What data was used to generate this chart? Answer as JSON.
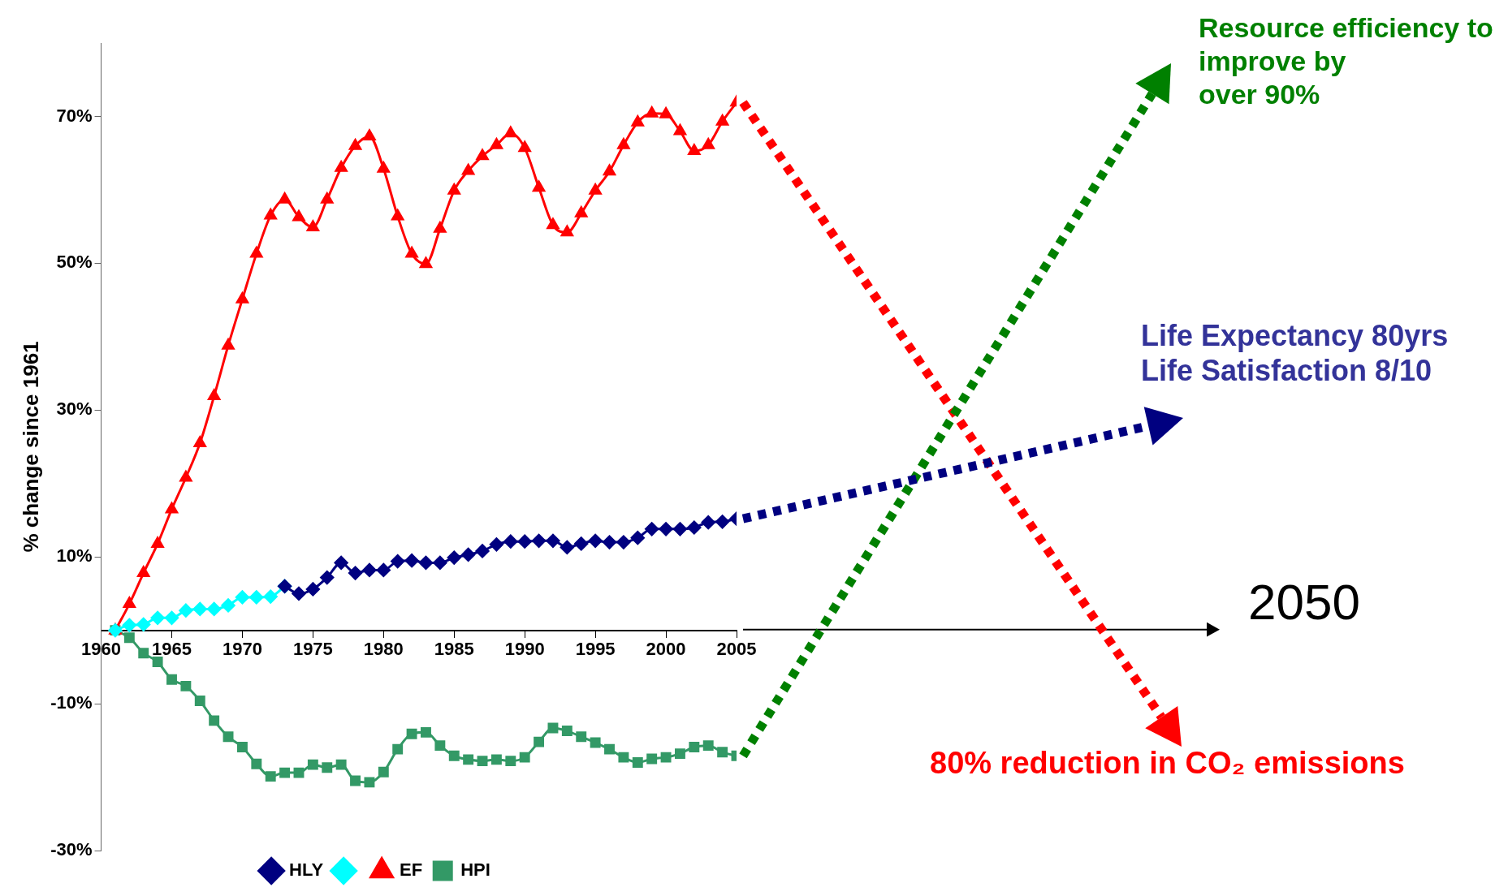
{
  "chart_data": {
    "type": "line",
    "ylabel": "% change since 1961",
    "x": [
      1961,
      1962,
      1963,
      1964,
      1965,
      1966,
      1967,
      1968,
      1969,
      1970,
      1971,
      1972,
      1973,
      1974,
      1975,
      1976,
      1977,
      1978,
      1979,
      1980,
      1981,
      1982,
      1983,
      1984,
      1985,
      1986,
      1987,
      1988,
      1989,
      1990,
      1991,
      1992,
      1993,
      1994,
      1995,
      1996,
      1997,
      1998,
      1999,
      2000,
      2001,
      2002,
      2003,
      2004,
      2005
    ],
    "series": [
      {
        "name": "HLY",
        "color": "#000080",
        "marker": "diamond",
        "x": [
          1973,
          1974,
          1975,
          1976,
          1977,
          1978,
          1979,
          1980,
          1981,
          1982,
          1983,
          1984,
          1985,
          1986,
          1987,
          1988,
          1989,
          1990,
          1991,
          1992,
          1993,
          1994,
          1995,
          1996,
          1997,
          1998,
          1999,
          2000,
          2001,
          2002,
          2003,
          2004,
          2005
        ],
        "values": [
          6.0,
          5.0,
          5.6,
          7.2,
          9.2,
          7.8,
          8.2,
          8.2,
          9.4,
          9.5,
          9.2,
          9.2,
          9.9,
          10.3,
          10.8,
          11.7,
          12.1,
          12.1,
          12.2,
          12.2,
          11.3,
          11.8,
          12.2,
          12.0,
          12.0,
          12.6,
          13.8,
          13.8,
          13.8,
          14.0,
          14.7,
          14.8,
          15.2
        ]
      },
      {
        "color": "#00ffff",
        "marker": "diamond",
        "x": [
          1961,
          1962,
          1963,
          1964,
          1965,
          1966,
          1967,
          1968,
          1969,
          1970,
          1971,
          1972,
          1973
        ],
        "values": [
          0,
          0.7,
          0.8,
          1.7,
          1.7,
          2.7,
          2.9,
          2.9,
          3.4,
          4.5,
          4.5,
          4.6,
          6.0
        ]
      },
      {
        "name": "EF",
        "color": "#ff0000",
        "marker": "triangle",
        "values": [
          0,
          3.6,
          7.8,
          11.8,
          16.5,
          20.8,
          25.5,
          31.9,
          38.8,
          45.1,
          51.3,
          56.5,
          58.7,
          56.3,
          54.9,
          58.7,
          63.0,
          66.0,
          67.3,
          62.9,
          56.4,
          51.3,
          49.9,
          54.7,
          59.9,
          62.6,
          64.6,
          66.1,
          67.7,
          65.7,
          60.3,
          55.2,
          54.2,
          56.8,
          59.9,
          62.5,
          66.1,
          69.2,
          70.4,
          70.3,
          68.0,
          65.3,
          66.1,
          69.3,
          71.9
        ]
      },
      {
        "name": "HPI",
        "color": "#339966",
        "marker": "square",
        "values": [
          0,
          -1.0,
          -3.1,
          -4.3,
          -6.7,
          -7.6,
          -9.6,
          -12.3,
          -14.5,
          -15.9,
          -18.2,
          -19.9,
          -19.4,
          -19.4,
          -18.3,
          -18.7,
          -18.3,
          -20.5,
          -20.7,
          -19.3,
          -16.2,
          -14.1,
          -13.9,
          -15.7,
          -17.1,
          -17.6,
          -17.8,
          -17.6,
          -17.8,
          -17.3,
          -15.2,
          -13.3,
          -13.7,
          -14.5,
          -15.3,
          -16.2,
          -17.3,
          -18.0,
          -17.5,
          -17.3,
          -16.8,
          -15.9,
          -15.7,
          -16.6,
          -17.1
        ]
      }
    ],
    "xlim": [
      1960,
      2005
    ],
    "xticks": [
      1960,
      1965,
      1970,
      1975,
      1980,
      1985,
      1990,
      1995,
      2000,
      2005
    ],
    "ylim": [
      -30,
      80
    ],
    "yticks": [
      {
        "value": -30,
        "label": "-30%"
      },
      {
        "value": -10,
        "label": "-10%"
      },
      {
        "value": 10,
        "label": "10%"
      },
      {
        "value": 30,
        "label": "30%"
      },
      {
        "value": 50,
        "label": "50%"
      },
      {
        "value": 70,
        "label": "70%"
      }
    ],
    "grid": false,
    "legend": "bottom",
    "annotations": [
      "Resource efficiency to\nimprove by\nover 90%",
      "Life Expectancy 80yrs\nLife Satisfaction 8/10",
      "80% reduction in CO₂ emissions",
      "2050"
    ]
  }
}
